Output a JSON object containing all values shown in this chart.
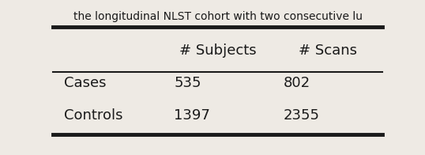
{
  "col_headers": [
    "",
    "# Subjects",
    "# Scans"
  ],
  "rows": [
    [
      "Cases",
      "535",
      "802"
    ],
    [
      "Controls",
      "1397",
      "2355"
    ]
  ],
  "top_bar_color": "#1a1a1a",
  "mid_rule_color": "#1a1a1a",
  "bottom_rule_color": "#1a1a1a",
  "background_color": "#eeeae4",
  "text_color": "#1a1a1a",
  "font_size": 13,
  "fig_width": 5.38,
  "fig_height": 1.96,
  "dpi": 100,
  "top_text": "the longitudinal NLST cohort with two consecutive lu"
}
